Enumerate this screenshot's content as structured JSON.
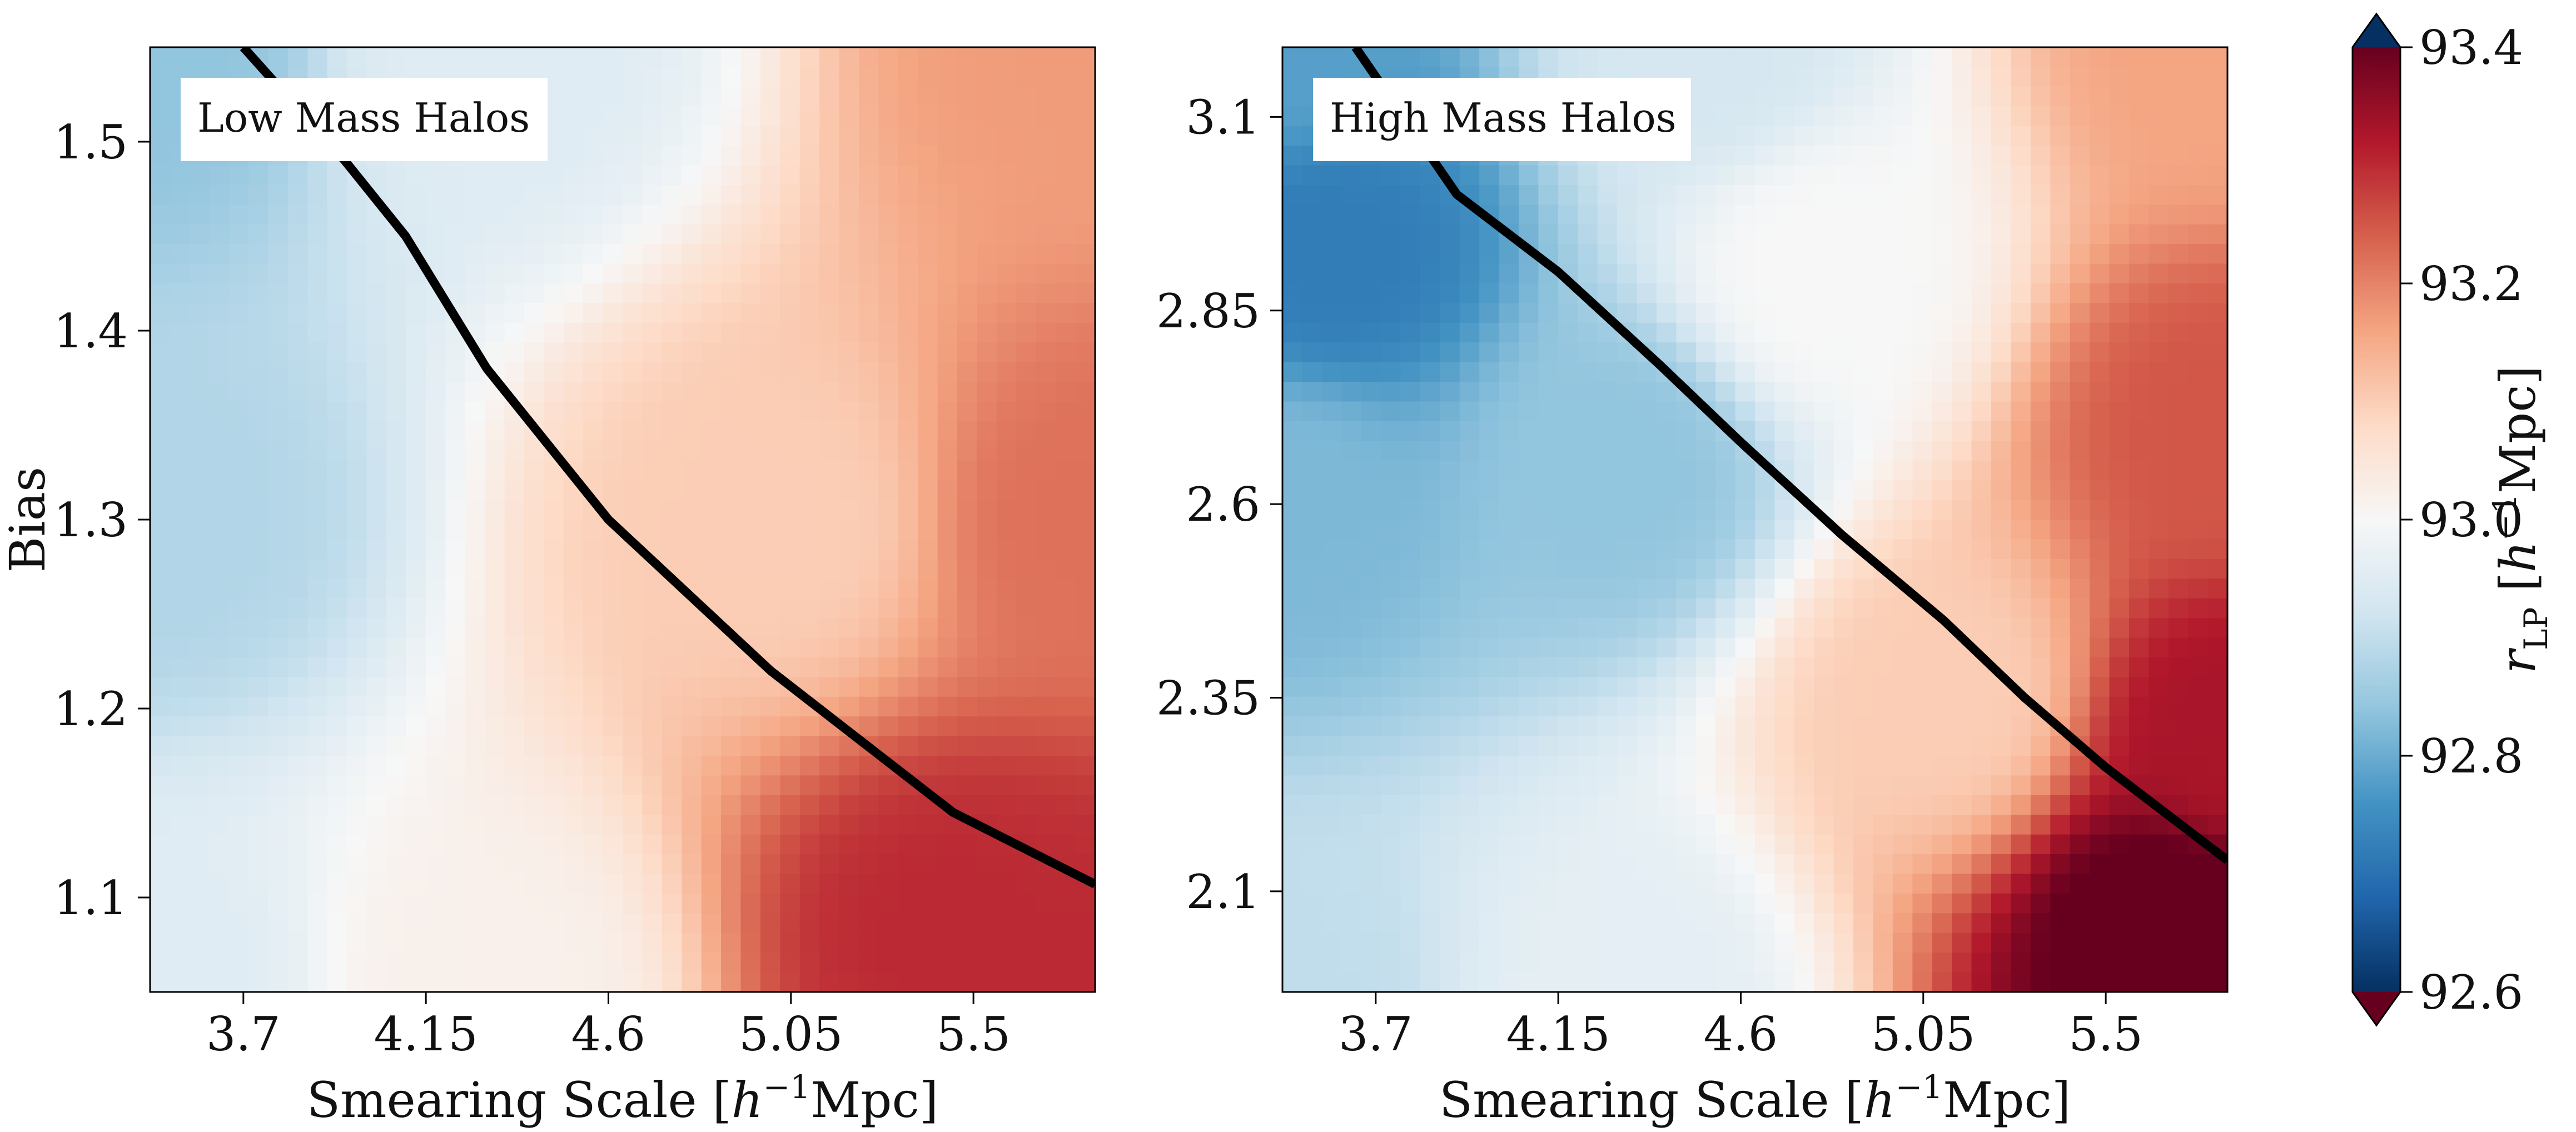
{
  "chart_data": [
    {
      "type": "heatmap",
      "title": "",
      "annotation": "Low Mass Halos",
      "xlabel_main": "Smearing Scale [",
      "xlabel_italic": "h",
      "xlabel_sup": "−1",
      "xlabel_tail": "Mpc]",
      "ylabel": "Bias",
      "xlim": [
        3.47,
        5.8
      ],
      "ylim": [
        1.05,
        1.55
      ],
      "x_ticks": [
        3.7,
        4.15,
        4.6,
        5.05,
        5.5
      ],
      "x_tick_labels": [
        "3.7",
        "4.15",
        "4.6",
        "5.05",
        "5.5"
      ],
      "y_ticks": [
        1.1,
        1.2,
        1.3,
        1.4,
        1.5
      ],
      "y_tick_labels": [
        "1.1",
        "1.2",
        "1.3",
        "1.4",
        "1.5"
      ],
      "heat_anchors": [
        {
          "x": 3.47,
          "y": 1.55,
          "v": 92.84
        },
        {
          "x": 3.47,
          "y": 1.3,
          "v": 92.88
        },
        {
          "x": 3.47,
          "y": 1.05,
          "v": 92.95
        },
        {
          "x": 4.3,
          "y": 1.55,
          "v": 92.95
        },
        {
          "x": 4.3,
          "y": 1.05,
          "v": 93.02
        },
        {
          "x": 5.0,
          "y": 1.3,
          "v": 93.1
        },
        {
          "x": 5.8,
          "y": 1.55,
          "v": 93.17
        },
        {
          "x": 5.8,
          "y": 1.3,
          "v": 93.22
        },
        {
          "x": 5.8,
          "y": 1.05,
          "v": 93.3
        },
        {
          "x": 5.45,
          "y": 1.08,
          "v": 93.3
        }
      ],
      "contour_line": {
        "x": [
          3.7,
          3.95,
          4.1,
          4.3,
          4.6,
          5.0,
          5.45,
          5.8
        ],
        "y": [
          1.55,
          1.49,
          1.45,
          1.38,
          1.3,
          1.22,
          1.145,
          1.107
        ]
      }
    },
    {
      "type": "heatmap",
      "title": "",
      "annotation": "High Mass Halos",
      "xlabel_main": "Smearing Scale [",
      "xlabel_italic": "h",
      "xlabel_sup": "−1",
      "xlabel_tail": "Mpc]",
      "ylabel": "",
      "xlim": [
        3.47,
        5.8
      ],
      "ylim": [
        1.97,
        3.19
      ],
      "x_ticks": [
        3.7,
        4.15,
        4.6,
        5.05,
        5.5
      ],
      "x_tick_labels": [
        "3.7",
        "4.15",
        "4.6",
        "5.05",
        "5.5"
      ],
      "y_ticks": [
        2.1,
        2.35,
        2.6,
        2.85,
        3.1
      ],
      "y_tick_labels": [
        "2.1",
        "2.35",
        "2.6",
        "2.85",
        "3.1"
      ],
      "heat_anchors": [
        {
          "x": 3.6,
          "y": 2.93,
          "v": 92.72
        },
        {
          "x": 3.47,
          "y": 3.19,
          "v": 92.78
        },
        {
          "x": 3.47,
          "y": 2.6,
          "v": 92.82
        },
        {
          "x": 3.47,
          "y": 1.97,
          "v": 92.9
        },
        {
          "x": 4.3,
          "y": 2.65,
          "v": 92.84
        },
        {
          "x": 4.5,
          "y": 3.19,
          "v": 92.93
        },
        {
          "x": 4.3,
          "y": 1.97,
          "v": 92.96
        },
        {
          "x": 4.8,
          "y": 2.9,
          "v": 93.0
        },
        {
          "x": 5.1,
          "y": 2.35,
          "v": 93.1
        },
        {
          "x": 5.8,
          "y": 3.19,
          "v": 93.16
        },
        {
          "x": 5.8,
          "y": 2.7,
          "v": 93.25
        },
        {
          "x": 5.8,
          "y": 2.3,
          "v": 93.33
        },
        {
          "x": 5.65,
          "y": 2.05,
          "v": 93.42
        }
      ],
      "contour_line": {
        "x": [
          3.65,
          3.9,
          4.15,
          4.4,
          4.6,
          4.85,
          5.1,
          5.3,
          5.5,
          5.8
        ],
        "y": [
          3.19,
          3.0,
          2.9,
          2.78,
          2.68,
          2.56,
          2.45,
          2.35,
          2.26,
          2.14
        ]
      }
    }
  ],
  "colorbar": {
    "cmap": "RdBu",
    "label_var": "r",
    "label_sub": "LP",
    "label_unit_open": " [",
    "label_italic": "h",
    "label_sup": "−1",
    "label_unit_close": "Mpc]",
    "vmin": 92.6,
    "vmax": 93.4,
    "ticks": [
      92.6,
      92.8,
      93.0,
      93.2,
      93.4
    ],
    "tick_labels": [
      "92.6",
      "92.8",
      "93.0",
      "93.2",
      "93.4"
    ],
    "colors": [
      "#67001f",
      "#b2182b",
      "#d6604d",
      "#f4a582",
      "#fddbc7",
      "#f7f7f7",
      "#d1e5f0",
      "#92c5de",
      "#4393c3",
      "#2166ac",
      "#053061"
    ]
  }
}
